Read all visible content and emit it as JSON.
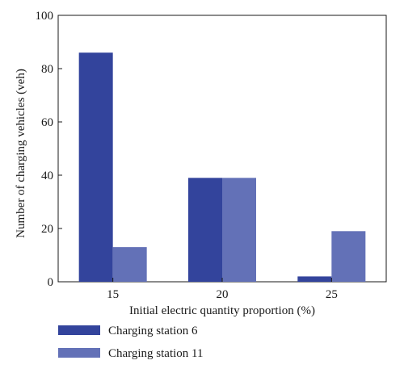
{
  "chart_data": {
    "type": "bar",
    "title": "",
    "xlabel": "Initial electric quantity proportion (%)",
    "ylabel": "Number of charging vehicles (veh)",
    "categories": [
      "15",
      "20",
      "25"
    ],
    "series": [
      {
        "name": "Charging station 6",
        "values": [
          86,
          39,
          2
        ],
        "color": "#33449c"
      },
      {
        "name": "Charging station 11",
        "values": [
          13,
          39,
          19
        ],
        "color": "#6371b7"
      }
    ],
    "ylim": [
      0,
      100
    ],
    "yticks": [
      "0",
      "20",
      "40",
      "60",
      "80",
      "100"
    ],
    "grid": false,
    "legend_position": "bottom-left"
  }
}
